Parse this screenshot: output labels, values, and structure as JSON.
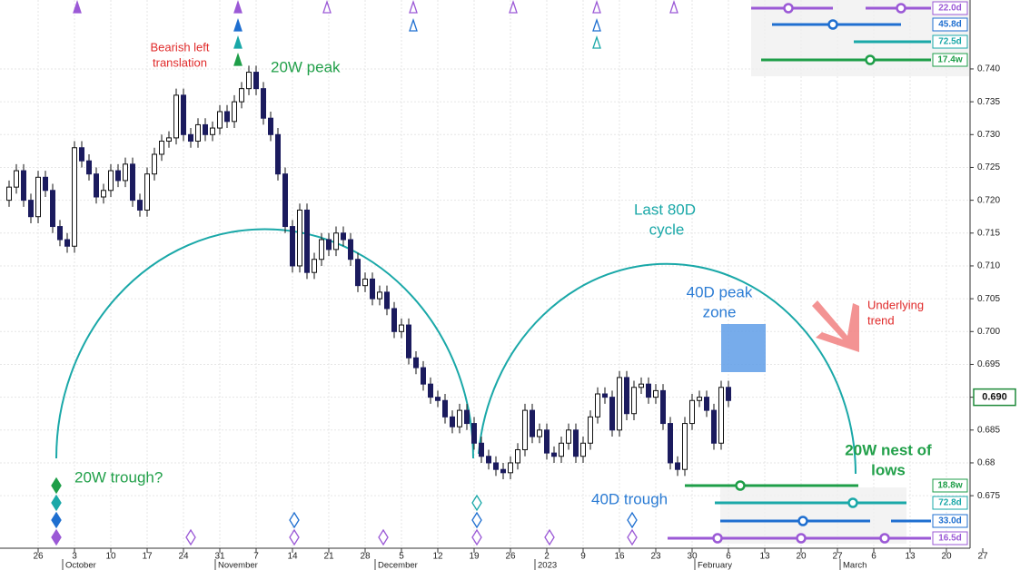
{
  "chart_data": {
    "type": "candlestick",
    "x": [
      "2022-09-20",
      "2022-09-21",
      "2022-09-22",
      "2022-09-23",
      "2022-09-26",
      "2022-09-27",
      "2022-09-28",
      "2022-09-29",
      "2022-09-30",
      "2022-10-03",
      "2022-10-04",
      "2022-10-05",
      "2022-10-06",
      "2022-10-07",
      "2022-10-10",
      "2022-10-11",
      "2022-10-12",
      "2022-10-13",
      "2022-10-14",
      "2022-10-17",
      "2022-10-18",
      "2022-10-19",
      "2022-10-20",
      "2022-10-21",
      "2022-10-24",
      "2022-10-25",
      "2022-10-26",
      "2022-10-27",
      "2022-10-28",
      "2022-10-31",
      "2022-11-01",
      "2022-11-02",
      "2022-11-03",
      "2022-11-04",
      "2022-11-07",
      "2022-11-08",
      "2022-11-09",
      "2022-11-10",
      "2022-11-11",
      "2022-11-14",
      "2022-11-15",
      "2022-11-16",
      "2022-11-17",
      "2022-11-18",
      "2022-11-21",
      "2022-11-22",
      "2022-11-23",
      "2022-11-24",
      "2022-11-25",
      "2022-11-28",
      "2022-11-29",
      "2022-11-30",
      "2022-12-01",
      "2022-12-02",
      "2022-12-05",
      "2022-12-06",
      "2022-12-07",
      "2022-12-08",
      "2022-12-09",
      "2022-12-12",
      "2022-12-13",
      "2022-12-14",
      "2022-12-15",
      "2022-12-16",
      "2022-12-19",
      "2022-12-20",
      "2022-12-21",
      "2022-12-22",
      "2022-12-23",
      "2022-12-26",
      "2022-12-27",
      "2022-12-28",
      "2022-12-29",
      "2022-12-30",
      "2023-01-02",
      "2023-01-03",
      "2023-01-04",
      "2023-01-05",
      "2023-01-06",
      "2023-01-09",
      "2023-01-10",
      "2023-01-11",
      "2023-01-12",
      "2023-01-13",
      "2023-01-16",
      "2023-01-17",
      "2023-01-18",
      "2023-01-19",
      "2023-01-20",
      "2023-01-23",
      "2023-01-24",
      "2023-01-25",
      "2023-01-26",
      "2023-01-27",
      "2023-01-30",
      "2023-01-31",
      "2023-02-01",
      "2023-02-02",
      "2023-02-03",
      "2023-02-06"
    ],
    "open": [
      0.72,
      0.722,
      0.7245,
      0.72,
      0.7175,
      0.7235,
      0.7215,
      0.716,
      0.714,
      0.713,
      0.728,
      0.726,
      0.724,
      0.7205,
      0.7215,
      0.7245,
      0.723,
      0.7255,
      0.72,
      0.7185,
      0.724,
      0.727,
      0.729,
      0.7295,
      0.736,
      0.73,
      0.729,
      0.7315,
      0.73,
      0.731,
      0.7335,
      0.732,
      0.735,
      0.737,
      0.7395,
      0.737,
      0.7325,
      0.73,
      0.724,
      0.716,
      0.71,
      0.7185,
      0.709,
      0.711,
      0.714,
      0.7125,
      0.715,
      0.714,
      0.711,
      0.707,
      0.708,
      0.705,
      0.706,
      0.7035,
      0.7,
      0.701,
      0.696,
      0.6945,
      0.692,
      0.69,
      0.6895,
      0.687,
      0.6855,
      0.688,
      0.686,
      0.683,
      0.681,
      0.68,
      0.679,
      0.6785,
      0.68,
      0.682,
      0.688,
      0.684,
      0.685,
      0.6815,
      0.681,
      0.683,
      0.685,
      0.681,
      0.683,
      0.687,
      0.6905,
      0.69,
      0.685,
      0.693,
      0.6875,
      0.6915,
      0.692,
      0.69,
      0.691,
      0.686,
      0.68,
      0.679,
      0.686,
      0.6895,
      0.69,
      0.688,
      0.683,
      0.6915
    ],
    "high": [
      0.723,
      0.7255,
      0.7255,
      0.721,
      0.7245,
      0.7245,
      0.7225,
      0.717,
      0.715,
      0.729,
      0.729,
      0.727,
      0.725,
      0.7225,
      0.7255,
      0.7255,
      0.7265,
      0.7265,
      0.721,
      0.725,
      0.728,
      0.73,
      0.7305,
      0.737,
      0.737,
      0.731,
      0.7325,
      0.7325,
      0.732,
      0.7345,
      0.7345,
      0.736,
      0.738,
      0.7405,
      0.7405,
      0.738,
      0.7335,
      0.731,
      0.725,
      0.717,
      0.7195,
      0.7195,
      0.712,
      0.715,
      0.715,
      0.716,
      0.716,
      0.715,
      0.712,
      0.709,
      0.709,
      0.707,
      0.707,
      0.7045,
      0.702,
      0.702,
      0.697,
      0.6955,
      0.693,
      0.691,
      0.6905,
      0.688,
      0.689,
      0.689,
      0.687,
      0.684,
      0.682,
      0.681,
      0.68,
      0.681,
      0.683,
      0.689,
      0.689,
      0.686,
      0.686,
      0.6825,
      0.684,
      0.686,
      0.686,
      0.684,
      0.688,
      0.6915,
      0.6915,
      0.691,
      0.694,
      0.694,
      0.6925,
      0.693,
      0.693,
      0.692,
      0.692,
      0.687,
      0.681,
      0.687,
      0.6905,
      0.691,
      0.691,
      0.689,
      0.6925,
      0.6925
    ],
    "low": [
      0.719,
      0.721,
      0.719,
      0.7165,
      0.7165,
      0.7205,
      0.715,
      0.713,
      0.712,
      0.712,
      0.725,
      0.723,
      0.7195,
      0.7195,
      0.7205,
      0.722,
      0.722,
      0.719,
      0.7175,
      0.7175,
      0.723,
      0.726,
      0.728,
      0.7285,
      0.729,
      0.728,
      0.728,
      0.729,
      0.729,
      0.73,
      0.731,
      0.731,
      0.734,
      0.736,
      0.736,
      0.7315,
      0.729,
      0.723,
      0.715,
      0.709,
      0.709,
      0.708,
      0.708,
      0.71,
      0.7115,
      0.7115,
      0.713,
      0.71,
      0.706,
      0.706,
      0.704,
      0.704,
      0.7025,
      0.699,
      0.699,
      0.695,
      0.6935,
      0.691,
      0.689,
      0.6885,
      0.686,
      0.6845,
      0.6845,
      0.685,
      0.682,
      0.68,
      0.679,
      0.678,
      0.6775,
      0.6775,
      0.679,
      0.681,
      0.683,
      0.683,
      0.6805,
      0.68,
      0.68,
      0.682,
      0.68,
      0.68,
      0.682,
      0.686,
      0.689,
      0.684,
      0.684,
      0.6865,
      0.6865,
      0.6905,
      0.689,
      0.689,
      0.685,
      0.679,
      0.678,
      0.678,
      0.685,
      0.6885,
      0.687,
      0.682,
      0.682,
      0.6885
    ],
    "close": [
      0.722,
      0.7245,
      0.72,
      0.7175,
      0.7235,
      0.7215,
      0.716,
      0.714,
      0.713,
      0.728,
      0.726,
      0.724,
      0.7205,
      0.7215,
      0.7245,
      0.723,
      0.7255,
      0.72,
      0.7185,
      0.724,
      0.727,
      0.729,
      0.7295,
      0.736,
      0.73,
      0.729,
      0.7315,
      0.73,
      0.731,
      0.7335,
      0.732,
      0.735,
      0.737,
      0.7395,
      0.737,
      0.7325,
      0.73,
      0.724,
      0.716,
      0.71,
      0.7185,
      0.709,
      0.711,
      0.714,
      0.7125,
      0.715,
      0.714,
      0.711,
      0.707,
      0.708,
      0.705,
      0.706,
      0.7035,
      0.7,
      0.701,
      0.696,
      0.6945,
      0.692,
      0.69,
      0.6895,
      0.687,
      0.6855,
      0.688,
      0.686,
      0.683,
      0.681,
      0.68,
      0.679,
      0.6785,
      0.68,
      0.682,
      0.688,
      0.684,
      0.685,
      0.6815,
      0.681,
      0.683,
      0.685,
      0.681,
      0.683,
      0.687,
      0.6905,
      0.69,
      0.685,
      0.693,
      0.6875,
      0.6915,
      0.692,
      0.69,
      0.691,
      0.686,
      0.68,
      0.679,
      0.686,
      0.6895,
      0.69,
      0.688,
      0.683,
      0.6915,
      0.6895
    ],
    "up_color": "#ffffff",
    "down_color": "#1b1b5e",
    "xlim": [
      "2022-09-20",
      "2023-03-24"
    ],
    "xticks": [
      {
        "value": "2022-09-26",
        "label": "26"
      },
      {
        "value": "2022-10-03",
        "label": "3"
      },
      {
        "value": "2022-10-10",
        "label": "10"
      },
      {
        "value": "2022-10-17",
        "label": "17"
      },
      {
        "value": "2022-10-24",
        "label": "24"
      },
      {
        "value": "2022-10-31",
        "label": "31"
      },
      {
        "value": "2022-11-07",
        "label": "7"
      },
      {
        "value": "2022-11-14",
        "label": "14"
      },
      {
        "value": "2022-11-21",
        "label": "21"
      },
      {
        "value": "2022-11-28",
        "label": "28"
      },
      {
        "value": "2022-12-05",
        "label": "5"
      },
      {
        "value": "2022-12-12",
        "label": "12"
      },
      {
        "value": "2022-12-19",
        "label": "19"
      },
      {
        "value": "2022-12-26",
        "label": "26"
      },
      {
        "value": "2023-01-02",
        "label": "2"
      },
      {
        "value": "2023-01-09",
        "label": "9"
      },
      {
        "value": "2023-01-16",
        "label": "16"
      },
      {
        "value": "2023-01-23",
        "label": "23"
      },
      {
        "value": "2023-01-30",
        "label": "30"
      },
      {
        "value": "2023-02-06",
        "label": "6"
      },
      {
        "value": "2023-02-13",
        "label": "13"
      },
      {
        "value": "2023-02-20",
        "label": "20"
      },
      {
        "value": "2023-02-27",
        "label": "27"
      },
      {
        "value": "2023-03-06",
        "label": "6"
      },
      {
        "value": "2023-03-13",
        "label": "13"
      },
      {
        "value": "2023-03-20",
        "label": "20"
      },
      {
        "value": "2023-03-27",
        "label": "27"
      }
    ],
    "month_labels": [
      {
        "value": "2022-10-01",
        "label": "October"
      },
      {
        "value": "2022-11-01",
        "label": "November"
      },
      {
        "value": "2022-12-01",
        "label": "December"
      },
      {
        "value": "2023-01-01",
        "label": "2023"
      },
      {
        "value": "2023-02-01",
        "label": "February"
      },
      {
        "value": "2023-03-01",
        "label": "March"
      }
    ],
    "ylim": [
      0.667,
      0.7505
    ],
    "yticks": [
      0.675,
      0.68,
      0.685,
      0.69,
      0.695,
      {
        "value": 0.7,
        "label": "0.700"
      },
      0.705,
      {
        "value": 0.71,
        "label": "0.710"
      },
      0.715,
      {
        "value": 0.72,
        "label": "0.720"
      },
      0.725,
      {
        "value": 0.73,
        "label": "0.730"
      },
      0.735,
      {
        "value": 0.74,
        "label": "0.740"
      }
    ],
    "grid": true,
    "last_price": {
      "value": 0.69,
      "label": "0.690"
    },
    "annotations": {
      "bearish": [
        "Bearish left",
        "translation"
      ],
      "peak20w": "20W peak",
      "last80d": [
        "Last 80D",
        "cycle"
      ],
      "peak40d": [
        "40D peak",
        "zone"
      ],
      "trend": [
        "Underlying",
        "trend"
      ],
      "trough20w": "20W trough?",
      "trough40d": "40D trough",
      "nest": [
        "20W nest of",
        "lows"
      ]
    },
    "cycle_labels_top": [
      "22.0d",
      "45.8d",
      "72.5d",
      "17.4w"
    ],
    "cycle_labels_bottom": [
      "18.8w",
      "72.8d",
      "33.0d",
      "16.5d"
    ]
  }
}
